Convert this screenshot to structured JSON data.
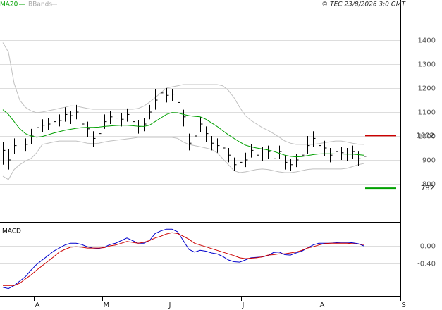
{
  "chart_data": [
    {
      "type": "ohlc",
      "source": "© TEC 23/8/2026 3:0 GMT",
      "xlim": [
        -0.5,
        70.5
      ],
      "ylim": [
        641,
        1568
      ],
      "yticks": [
        800,
        900,
        1000,
        1100,
        1200,
        1300,
        1400
      ],
      "grid": true,
      "bar_color": "#000000",
      "high": [
        975,
        945,
        990,
        1000,
        990,
        1030,
        1065,
        1070,
        1075,
        1085,
        1090,
        1120,
        1105,
        1130,
        1085,
        1060,
        1020,
        1040,
        1090,
        1105,
        1100,
        1095,
        1115,
        1085,
        1065,
        1075,
        1130,
        1195,
        1210,
        1200,
        1195,
        1175,
        1110,
        1010,
        1030,
        1080,
        1040,
        1000,
        990,
        975,
        950,
        910,
        920,
        930,
        965,
        955,
        955,
        960,
        935,
        960,
        920,
        905,
        925,
        950,
        1000,
        1020,
        990,
        980,
        950,
        960,
        955,
        950,
        960,
        935,
        940
      ],
      "low": [
        880,
        860,
        925,
        950,
        935,
        965,
        1005,
        1015,
        1025,
        1035,
        1040,
        1060,
        1050,
        1070,
        1015,
        995,
        955,
        980,
        1030,
        1050,
        1045,
        1040,
        1060,
        1030,
        1010,
        1020,
        1070,
        1110,
        1140,
        1140,
        1145,
        1100,
        1040,
        940,
        960,
        1015,
        975,
        940,
        930,
        920,
        890,
        855,
        860,
        870,
        910,
        890,
        895,
        905,
        875,
        905,
        860,
        855,
        870,
        890,
        925,
        955,
        925,
        915,
        890,
        905,
        900,
        895,
        905,
        875,
        885
      ],
      "close": [
        940,
        900,
        960,
        975,
        965,
        1000,
        1035,
        1045,
        1050,
        1060,
        1065,
        1090,
        1085,
        1100,
        1050,
        1030,
        990,
        1010,
        1060,
        1080,
        1075,
        1070,
        1090,
        1060,
        1040,
        1050,
        1100,
        1150,
        1180,
        1170,
        1175,
        1140,
        1080,
        970,
        1000,
        1050,
        1010,
        970,
        960,
        950,
        920,
        880,
        890,
        900,
        940,
        920,
        925,
        935,
        905,
        935,
        890,
        880,
        900,
        920,
        960,
        990,
        960,
        950,
        920,
        935,
        930,
        925,
        935,
        905,
        915
      ],
      "series": [
        {
          "name": "MA20",
          "color": "#00a000",
          "values": [
            1110,
            1090,
            1060,
            1030,
            1010,
            1000,
            995,
            998,
            1005,
            1012,
            1018,
            1024,
            1028,
            1032,
            1035,
            1036,
            1036,
            1037,
            1040,
            1042,
            1044,
            1045,
            1045,
            1043,
            1041,
            1040,
            1045,
            1060,
            1075,
            1090,
            1098,
            1097,
            1090,
            1085,
            1082,
            1080,
            1070,
            1055,
            1040,
            1022,
            1005,
            990,
            975,
            962,
            955,
            950,
            946,
            942,
            936,
            928,
            920,
            915,
            913,
            914,
            918,
            922,
            925,
            926,
            926,
            925,
            925,
            924,
            924,
            922,
            920
          ]
        },
        {
          "name": "BBands",
          "color": "#c0c0c0",
          "upper": [
            1390,
            1350,
            1220,
            1150,
            1120,
            1105,
            1097,
            1100,
            1105,
            1110,
            1115,
            1120,
            1126,
            1125,
            1120,
            1115,
            1112,
            1112,
            1112,
            1112,
            1112,
            1112,
            1112,
            1112,
            1115,
            1125,
            1141,
            1160,
            1180,
            1200,
            1205,
            1210,
            1215,
            1215,
            1215,
            1215,
            1215,
            1215,
            1215,
            1210,
            1190,
            1160,
            1120,
            1085,
            1065,
            1050,
            1035,
            1024,
            1010,
            995,
            979,
            970,
            965,
            965,
            965,
            965,
            968,
            972,
            976,
            979,
            979,
            975,
            970,
            966,
            965
          ],
          "lower": [
            832,
            818,
            860,
            880,
            895,
            906,
            930,
            965,
            970,
            975,
            979,
            979,
            979,
            979,
            975,
            970,
            968,
            970,
            975,
            979,
            982,
            985,
            988,
            991,
            994,
            994,
            994,
            994,
            994,
            994,
            994,
            990,
            975,
            965,
            960,
            955,
            950,
            944,
            930,
            905,
            880,
            855,
            847,
            850,
            855,
            860,
            862,
            860,
            855,
            850,
            847,
            847,
            850,
            855,
            860,
            862,
            862,
            862,
            862,
            862,
            862,
            865,
            872,
            880,
            885
          ]
        }
      ],
      "levels": [
        {
          "value": 1002,
          "color": "#cc0000"
        },
        {
          "value": 782,
          "color": "#00a000"
        }
      ]
    },
    {
      "type": "line",
      "title": "MACD",
      "xlim": [
        -0.5,
        70.5
      ],
      "xticks": [
        {
          "value": 5.5,
          "label": "A"
        },
        {
          "value": 17.6,
          "label": "M"
        },
        {
          "value": 29.25,
          "label": "J"
        },
        {
          "value": 42.25,
          "label": "J"
        },
        {
          "value": 56,
          "label": "A"
        },
        {
          "value": 70.5,
          "label": "S"
        }
      ],
      "ylim": [
        -1.136,
        0.544
      ],
      "yticks": [
        {
          "value": 0,
          "label": "0.00"
        },
        {
          "value": -0.4,
          "label": "-0.40"
        }
      ],
      "grid": true,
      "series": [
        {
          "color": "#0000cc",
          "values": [
            -0.94,
            -0.97,
            -0.9,
            -0.8,
            -0.7,
            -0.55,
            -0.42,
            -0.32,
            -0.22,
            -0.12,
            -0.05,
            0.02,
            0.06,
            0.06,
            0.03,
            -0.02,
            -0.05,
            -0.06,
            -0.03,
            0.03,
            0.06,
            0.12,
            0.18,
            0.12,
            0.06,
            0.06,
            0.12,
            0.28,
            0.34,
            0.38,
            0.38,
            0.32,
            0.12,
            -0.08,
            -0.14,
            -0.1,
            -0.12,
            -0.16,
            -0.18,
            -0.24,
            -0.32,
            -0.36,
            -0.37,
            -0.32,
            -0.27,
            -0.26,
            -0.25,
            -0.22,
            -0.15,
            -0.14,
            -0.2,
            -0.21,
            -0.16,
            -0.12,
            -0.05,
            0.02,
            0.06,
            0.06,
            0.06,
            0.07,
            0.08,
            0.08,
            0.07,
            0.05,
            0.0
          ]
        },
        {
          "color": "#cc0000",
          "values": [
            -0.9,
            -0.9,
            -0.9,
            -0.85,
            -0.75,
            -0.66,
            -0.55,
            -0.45,
            -0.35,
            -0.25,
            -0.14,
            -0.08,
            -0.03,
            -0.02,
            -0.03,
            -0.05,
            -0.05,
            -0.05,
            -0.04,
            0.0,
            0.02,
            0.06,
            0.1,
            0.08,
            0.06,
            0.08,
            0.12,
            0.18,
            0.22,
            0.27,
            0.3,
            0.28,
            0.22,
            0.15,
            0.06,
            0.02,
            -0.02,
            -0.06,
            -0.1,
            -0.14,
            -0.18,
            -0.22,
            -0.27,
            -0.29,
            -0.28,
            -0.27,
            -0.25,
            -0.21,
            -0.2,
            -0.18,
            -0.18,
            -0.16,
            -0.14,
            -0.1,
            -0.05,
            -0.02,
            0.02,
            0.05,
            0.06,
            0.06,
            0.06,
            0.06,
            0.05,
            0.04,
            0.03
          ]
        }
      ]
    }
  ]
}
